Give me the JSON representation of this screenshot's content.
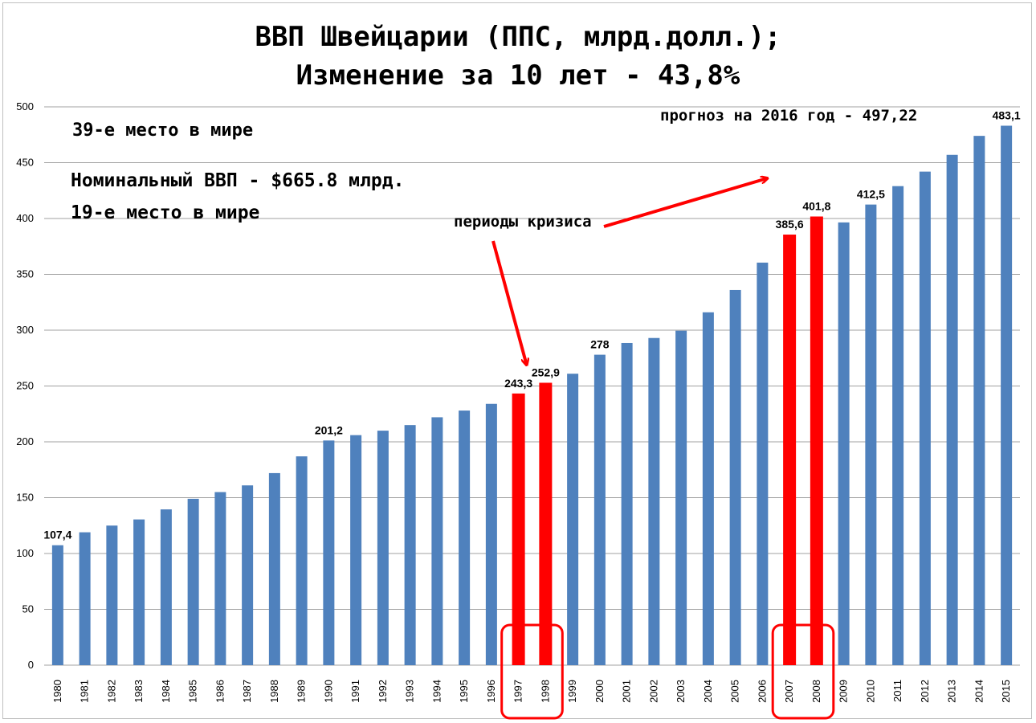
{
  "chart_data": {
    "type": "bar",
    "title_line1": "ВВП Швейцарии (ППС, млрд.долл.);",
    "title_line2": "Изменение за 10 лет - 43,8%",
    "xlabel": "",
    "ylabel": "",
    "ylim": [
      0,
      500
    ],
    "y_ticks": [
      0,
      50,
      100,
      150,
      200,
      250,
      300,
      350,
      400,
      450,
      500
    ],
    "grid": true,
    "categories": [
      "1980",
      "1981",
      "1982",
      "1983",
      "1984",
      "1985",
      "1986",
      "1987",
      "1988",
      "1989",
      "1990",
      "1991",
      "1992",
      "1993",
      "1994",
      "1995",
      "1996",
      "1997",
      "1998",
      "1999",
      "2000",
      "2001",
      "2002",
      "2003",
      "2004",
      "2005",
      "2006",
      "2007",
      "2008",
      "2009",
      "2010",
      "2011",
      "2012",
      "2013",
      "2014",
      "2015"
    ],
    "values": [
      107.4,
      119,
      125,
      130.5,
      139.5,
      149,
      155,
      161,
      172,
      187,
      201.2,
      206,
      210,
      215,
      222,
      228,
      234,
      243.3,
      252.9,
      261,
      278,
      288.5,
      293,
      299.5,
      316,
      336,
      360.5,
      385.6,
      401.8,
      396.5,
      412.5,
      429,
      442,
      457,
      474,
      483.1
    ],
    "colors": {
      "normal": "#4f81bd",
      "crisis": "#ff0000",
      "grid": "#a0a0a0",
      "annotation": "#ff0000"
    },
    "crisis_categories": [
      "1997",
      "1998",
      "2007",
      "2008"
    ],
    "data_labels": [
      {
        "category": "1980",
        "text": "107,4"
      },
      {
        "category": "1990",
        "text": "201,2"
      },
      {
        "category": "1997",
        "text": "243,3"
      },
      {
        "category": "1998",
        "text": "252,9"
      },
      {
        "category": "2000",
        "text": "278"
      },
      {
        "category": "2007",
        "text": "385,6"
      },
      {
        "category": "2008",
        "text": "401,8"
      },
      {
        "category": "2010",
        "text": "412,5"
      },
      {
        "category": "2015",
        "text": "483,1"
      }
    ],
    "annotations": {
      "crisis_label": "периоды кризиса",
      "rank_ppp": "39-е место в мире",
      "nominal_gdp": "Номинальный ВВП - $665.8 млрд.",
      "rank_nominal": "19-е место в мире",
      "forecast": "прогноз на 2016 год - 497,22"
    }
  }
}
